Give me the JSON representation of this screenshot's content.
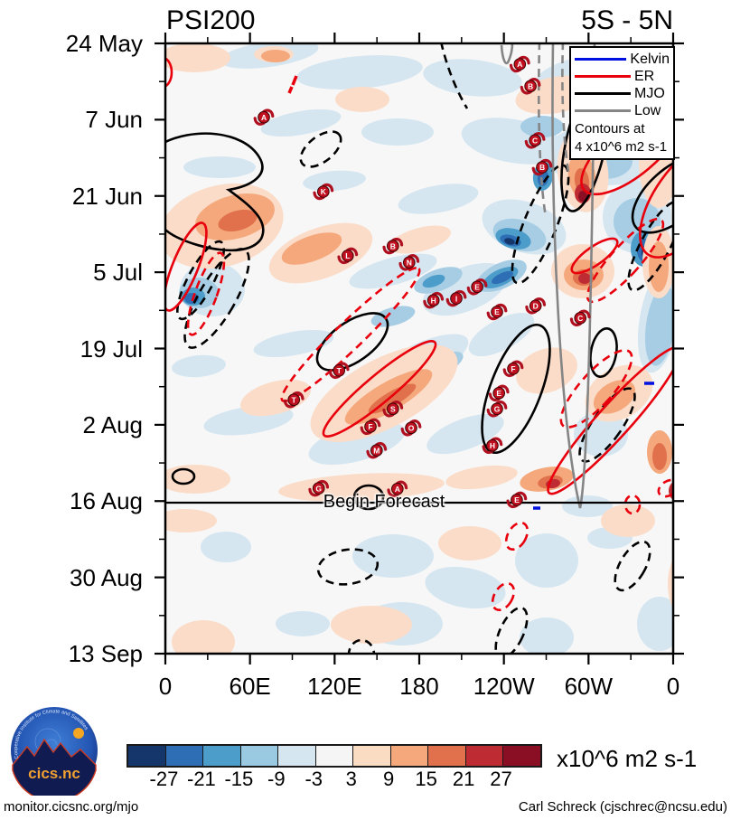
{
  "header": {
    "title": "PSI200",
    "range_label": "5S - 5N"
  },
  "legend": {
    "items": [
      {
        "label": "Kelvin",
        "color": "#0010e0"
      },
      {
        "label": "ER",
        "color": "#e8000d"
      },
      {
        "label": "MJO",
        "color": "#000000"
      },
      {
        "label": "Low",
        "color": "#858585"
      }
    ],
    "note_line1": "Contours at",
    "note_line2": "4 x10^6 m2 s-1"
  },
  "chart_data": {
    "type": "heatmap",
    "title": "PSI200",
    "subtitle": "5S - 5N",
    "description": "Time-longitude (Hovmoller) section of 200 hPa streamfunction anomalies averaged 5S-5N, with wave-filtered contours (Kelvin, ER, MJO, Low) at 4 x10^6 m2 s-1 and tropical cyclone letter markers",
    "x_axis": {
      "tick_labels": [
        "0",
        "60E",
        "120E",
        "180",
        "120W",
        "60W",
        "0"
      ],
      "minor_tick_every_deg": 30,
      "range_deg": [
        0,
        360
      ]
    },
    "y_axis": {
      "tick_labels": [
        "24 May",
        "7 Jun",
        "21 Jun",
        "5 Jul",
        "19 Jul",
        "2 Aug",
        "16 Aug",
        "30 Aug",
        "13 Sep"
      ],
      "minor_tick_every_days": 7,
      "time_increases_downward": true
    },
    "annotation": {
      "label": "Begin Forecast",
      "at_date": "16 Aug"
    },
    "contour_interval_note": "Contours at 4 x10^6 m2 s-1",
    "wave_legend": [
      "Kelvin",
      "ER",
      "MJO",
      "Low"
    ],
    "colorbar": {
      "tick_labels": [
        "-27",
        "-21",
        "-15",
        "-9",
        "-3",
        "3",
        "9",
        "15",
        "21",
        "27"
      ],
      "colors": [
        "#14366b",
        "#2d6eb5",
        "#4d9dca",
        "#9ac9e2",
        "#d5e6f1",
        "#f5f5f5",
        "#fadcc3",
        "#f4a87c",
        "#e0714c",
        "#bf2b33",
        "#8a0f25"
      ],
      "units_label": "x10^6 m2 s-1"
    },
    "cyclone_markers": [
      {
        "letter": "A",
        "fx": 0.698,
        "fy": 0.034
      },
      {
        "letter": "B",
        "fx": 0.719,
        "fy": 0.07
      },
      {
        "letter": "C",
        "fx": 0.728,
        "fy": 0.159
      },
      {
        "letter": "B",
        "fx": 0.742,
        "fy": 0.203
      },
      {
        "letter": "A",
        "fx": 0.194,
        "fy": 0.121
      },
      {
        "letter": "K",
        "fx": 0.311,
        "fy": 0.243
      },
      {
        "letter": "L",
        "fx": 0.359,
        "fy": 0.348
      },
      {
        "letter": "B",
        "fx": 0.448,
        "fy": 0.332
      },
      {
        "letter": "N",
        "fx": 0.48,
        "fy": 0.359
      },
      {
        "letter": "E",
        "fx": 0.614,
        "fy": 0.399
      },
      {
        "letter": "I",
        "fx": 0.573,
        "fy": 0.418
      },
      {
        "letter": "H",
        "fx": 0.528,
        "fy": 0.421
      },
      {
        "letter": "E",
        "fx": 0.653,
        "fy": 0.44
      },
      {
        "letter": "D",
        "fx": 0.729,
        "fy": 0.43
      },
      {
        "letter": "C",
        "fx": 0.817,
        "fy": 0.45
      },
      {
        "letter": "T",
        "fx": 0.342,
        "fy": 0.536
      },
      {
        "letter": "F",
        "fx": 0.685,
        "fy": 0.533
      },
      {
        "letter": "T",
        "fx": 0.253,
        "fy": 0.584
      },
      {
        "letter": "E",
        "fx": 0.657,
        "fy": 0.573
      },
      {
        "letter": "G",
        "fx": 0.653,
        "fy": 0.599
      },
      {
        "letter": "S",
        "fx": 0.448,
        "fy": 0.599
      },
      {
        "letter": "F",
        "fx": 0.404,
        "fy": 0.628
      },
      {
        "letter": "O",
        "fx": 0.484,
        "fy": 0.63
      },
      {
        "letter": "M",
        "fx": 0.416,
        "fy": 0.667
      },
      {
        "letter": "H",
        "fx": 0.644,
        "fy": 0.659
      },
      {
        "letter": "G",
        "fx": 0.302,
        "fy": 0.729
      },
      {
        "letter": "A",
        "fx": 0.457,
        "fy": 0.73
      },
      {
        "letter": "E",
        "fx": 0.692,
        "fy": 0.748
      }
    ]
  },
  "footer": {
    "left": "monitor.cicsnc.org/mjo",
    "right": "Carl Schreck (cjschrec@ncsu.edu)"
  },
  "logo": {
    "name": "cics.nc",
    "ring_text": "Cooperative Institute for Climate and Satellites"
  }
}
